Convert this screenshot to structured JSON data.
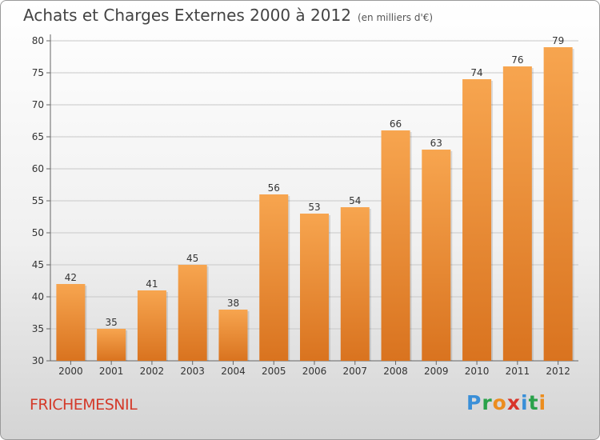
{
  "chart_data": {
    "type": "bar",
    "title": "Achats et Charges Externes 2000 à 2012",
    "subtitle": "(en milliers d'€)",
    "categories": [
      "2000",
      "2001",
      "2002",
      "2003",
      "2004",
      "2005",
      "2006",
      "2007",
      "2008",
      "2009",
      "2010",
      "2011",
      "2012"
    ],
    "values": [
      42,
      35,
      41,
      45,
      38,
      56,
      53,
      54,
      66,
      63,
      74,
      76,
      79
    ],
    "ylim": [
      30,
      80
    ],
    "yticks": [
      30,
      35,
      40,
      45,
      50,
      55,
      60,
      65,
      70,
      75,
      80
    ],
    "grid": true,
    "bar_color_top": "#f7a54f",
    "bar_color_bottom": "#d9731f"
  },
  "footer": {
    "town": "FRICHEMESNIL",
    "brand_letters": [
      "P",
      "r",
      "o",
      "x",
      "i",
      "t",
      "i"
    ],
    "brand_colors": [
      "#3a8fd8",
      "#2aa24a",
      "#ec8d1e",
      "#d8342a",
      "#3a8fd8",
      "#2aa24a",
      "#ec8d1e"
    ]
  }
}
